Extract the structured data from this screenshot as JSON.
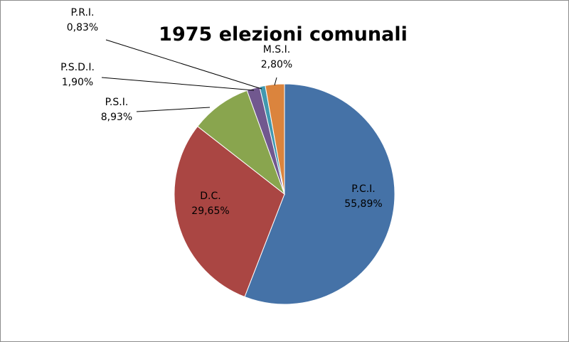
{
  "chart_data": {
    "type": "pie",
    "title": "1975 elezioni comunali",
    "slices": [
      {
        "label": "P.C.I.",
        "value": 55.89,
        "value_label": "55,89%",
        "color": "#4572a7"
      },
      {
        "label": "D.C.",
        "value": 29.65,
        "value_label": "29,65%",
        "color": "#aa4643"
      },
      {
        "label": "P.S.I.",
        "value": 8.93,
        "value_label": "8,93%",
        "color": "#89a54e"
      },
      {
        "label": "P.S.D.I.",
        "value": 1.9,
        "value_label": "1,90%",
        "color": "#71588f"
      },
      {
        "label": "P.R.I.",
        "value": 0.83,
        "value_label": "0,83%",
        "color": "#4198af"
      },
      {
        "label": "M.S.I.",
        "value": 2.8,
        "value_label": "2,80%",
        "color": "#db843d"
      }
    ],
    "legend": "none"
  }
}
